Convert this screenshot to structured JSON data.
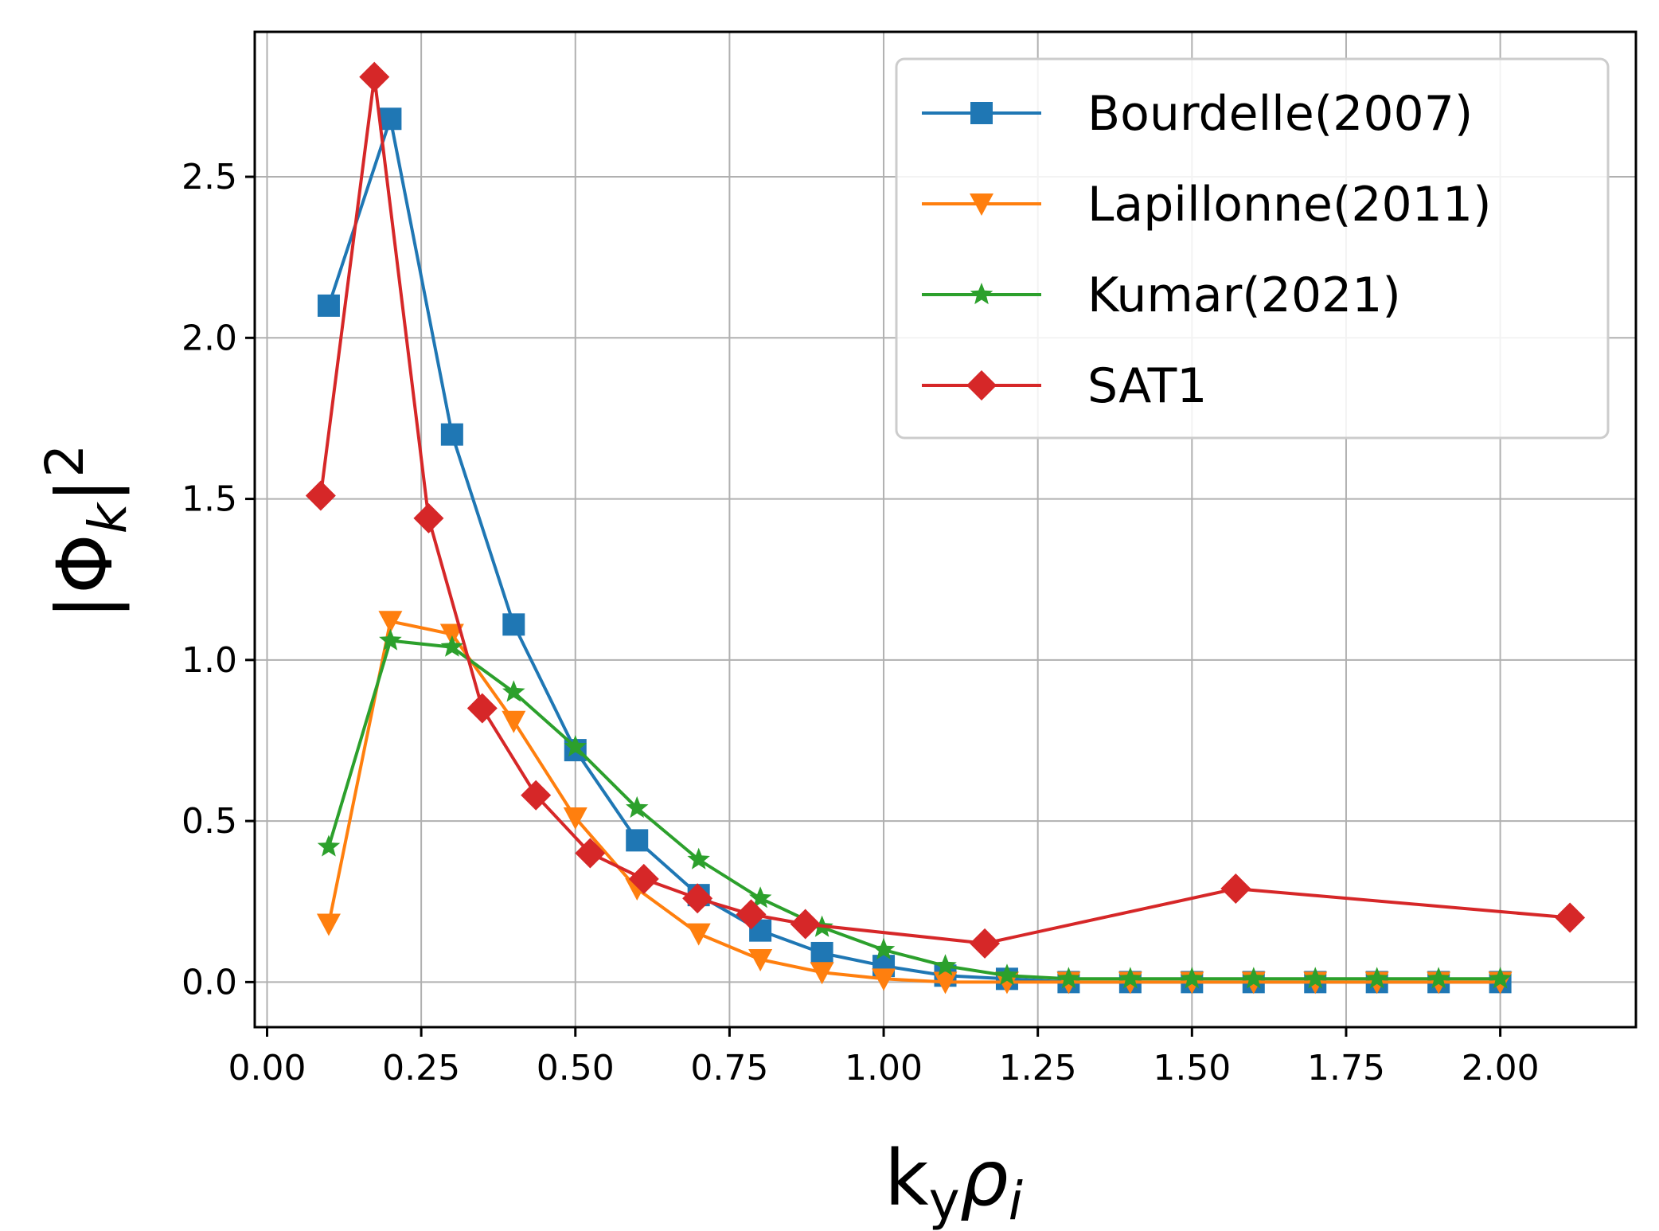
{
  "chart_data": {
    "type": "line",
    "title": "",
    "xlabel": "k_y ρ_i",
    "xlabel_main": "k",
    "xlabel_sub1": "y",
    "xlabel_greek": "ρ",
    "xlabel_sub2": "i",
    "ylabel": "|Φ_k|^2",
    "ylabel_main": "|Φ",
    "ylabel_sub": "k",
    "ylabel_close": "|",
    "ylabel_sup": "2",
    "xlim": [
      -0.02,
      2.22
    ],
    "ylim": [
      -0.14,
      2.95
    ],
    "xticks": [
      0.0,
      0.25,
      0.5,
      0.75,
      1.0,
      1.25,
      1.5,
      1.75,
      2.0
    ],
    "xtick_labels": [
      "0.00",
      "0.25",
      "0.50",
      "0.75",
      "1.00",
      "1.25",
      "1.50",
      "1.75",
      "2.00"
    ],
    "yticks": [
      0.0,
      0.5,
      1.0,
      1.5,
      2.0,
      2.5
    ],
    "ytick_labels": [
      "0.0",
      "0.5",
      "1.0",
      "1.5",
      "2.0",
      "2.5"
    ],
    "grid": true,
    "legend_position": "top-right",
    "series": [
      {
        "name": "Bourdelle(2007)",
        "color": "#1f77b4",
        "marker": "square",
        "x": [
          0.1,
          0.2,
          0.3,
          0.4,
          0.5,
          0.6,
          0.7,
          0.8,
          0.9,
          1.0,
          1.1,
          1.2,
          1.3,
          1.4,
          1.5,
          1.6,
          1.7,
          1.8,
          1.9,
          2.0
        ],
        "y": [
          2.1,
          2.68,
          1.7,
          1.11,
          0.72,
          0.44,
          0.27,
          0.16,
          0.09,
          0.05,
          0.02,
          0.01,
          0.0,
          0.0,
          0.0,
          0.0,
          0.0,
          0.0,
          0.0,
          0.0
        ]
      },
      {
        "name": "Lapillonne(2011)",
        "color": "#ff7f0e",
        "marker": "triangle-down",
        "x": [
          0.1,
          0.2,
          0.3,
          0.4,
          0.5,
          0.6,
          0.7,
          0.8,
          0.9,
          1.0,
          1.1,
          1.2,
          1.3,
          1.4,
          1.5,
          1.6,
          1.7,
          1.8,
          1.9,
          2.0
        ],
        "y": [
          0.18,
          1.12,
          1.08,
          0.81,
          0.51,
          0.29,
          0.15,
          0.07,
          0.03,
          0.01,
          0.0,
          0.0,
          0.0,
          0.0,
          0.0,
          0.0,
          0.0,
          0.0,
          0.0,
          0.0
        ]
      },
      {
        "name": "Kumar(2021)",
        "color": "#2ca02c",
        "marker": "star",
        "x": [
          0.1,
          0.2,
          0.3,
          0.4,
          0.5,
          0.6,
          0.7,
          0.8,
          0.9,
          1.0,
          1.1,
          1.2,
          1.3,
          1.4,
          1.5,
          1.6,
          1.7,
          1.8,
          1.9,
          2.0
        ],
        "y": [
          0.42,
          1.06,
          1.04,
          0.9,
          0.73,
          0.54,
          0.38,
          0.26,
          0.17,
          0.1,
          0.05,
          0.02,
          0.01,
          0.01,
          0.01,
          0.01,
          0.01,
          0.01,
          0.01,
          0.01
        ]
      },
      {
        "name": "SAT1",
        "color": "#d62728",
        "marker": "diamond",
        "x": [
          0.087,
          0.174,
          0.262,
          0.349,
          0.436,
          0.524,
          0.611,
          0.698,
          0.785,
          0.873,
          1.164,
          1.571,
          2.113
        ],
        "y": [
          1.51,
          2.81,
          1.44,
          0.85,
          0.58,
          0.4,
          0.32,
          0.26,
          0.21,
          0.18,
          0.12,
          0.29,
          0.2
        ]
      }
    ]
  }
}
